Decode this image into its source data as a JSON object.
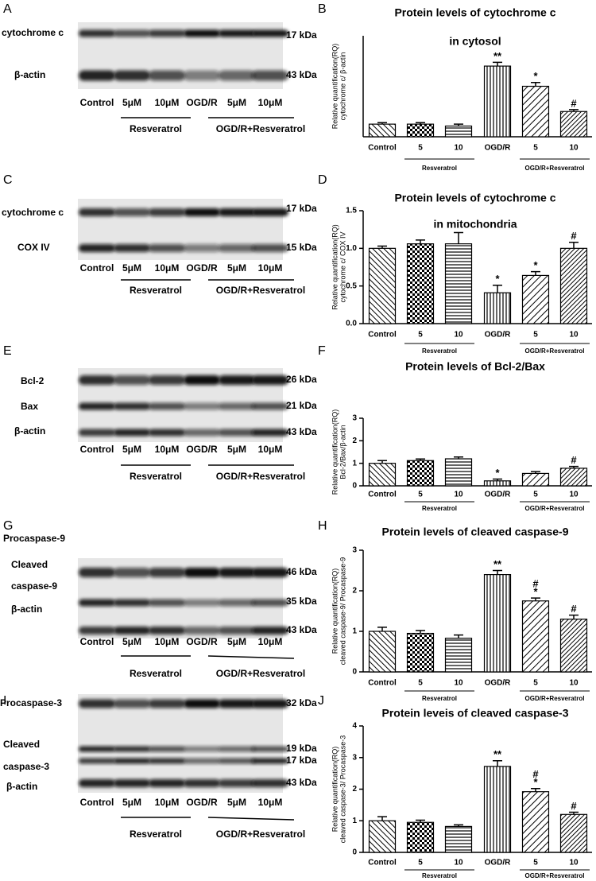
{
  "blots": [
    {
      "letter": "A",
      "proteins": [
        "cytochrome c",
        "β-actin"
      ],
      "kda": [
        "17 kDa",
        "43 kDa"
      ],
      "lanes": [
        "Control",
        "5μM",
        "10μM",
        "OGD/R",
        "5μM",
        "10μM"
      ],
      "groups": [
        "Resveratrol",
        "OGD/R+Resveratrol"
      ]
    },
    {
      "letter": "C",
      "proteins": [
        "cytochrome c",
        "COX IV"
      ],
      "kda": [
        "17 kDa",
        "15 kDa"
      ],
      "lanes": [
        "Control",
        "5μM",
        "10μM",
        "OGD/R",
        "5μM",
        "10μM"
      ],
      "groups": [
        "Resveratrol",
        "OGD/R+Resveratrol"
      ]
    },
    {
      "letter": "E",
      "proteins": [
        "Bcl-2",
        "Bax",
        "β-actin"
      ],
      "kda": [
        "26 kDa",
        "21 kDa",
        "43 kDa"
      ],
      "lanes": [
        "Control",
        "5μM",
        "10μM",
        "OGD/R",
        "5μM",
        "10μM"
      ],
      "groups": [
        "Resveratrol",
        "OGD/R+Resveratrol"
      ]
    },
    {
      "letter": "G",
      "proteins": [
        "Procaspase-9",
        "Cleaved",
        "caspase-9",
        "β-actin"
      ],
      "kda": [
        "46 kDa",
        "35 kDa",
        "43 kDa"
      ],
      "lanes": [
        "Control",
        "5μM",
        "10μM",
        "OGD/R",
        "5μM",
        "10μM"
      ],
      "groups": [
        "Resveratrol",
        "OGD/R+Resveratrol"
      ]
    },
    {
      "letter": "I",
      "proteins": [
        "Procaspase-3",
        "Cleaved",
        "caspase-3",
        "β-actin"
      ],
      "kda": [
        "32 kDa",
        "19 kDa",
        "17 kDa",
        "43 kDa"
      ],
      "lanes": [
        "Control",
        "5μM",
        "10μM",
        "OGD/R",
        "5μM",
        "10μM"
      ],
      "groups": [
        "Resveratrol",
        "OGD/R+Resveratrol"
      ]
    }
  ],
  "chart_data": [
    {
      "type": "bar",
      "letter": "B",
      "title": [
        "Protein levels of cytochrome c",
        "in cytosol"
      ],
      "ylabel": [
        "Relative quantification(RQ)",
        "cytochrome c/ β-actin"
      ],
      "categories": [
        "Control",
        "5",
        "10",
        "OGD/R",
        "5",
        "10"
      ],
      "groups": [
        "Resveratrol",
        "OGD/R+Resveratrol"
      ],
      "values": [
        1.0,
        1.0,
        0.85,
        5.6,
        4.0,
        2.0
      ],
      "errors": [
        0.12,
        0.12,
        0.15,
        0.3,
        0.3,
        0.15
      ],
      "annotations": [
        null,
        null,
        null,
        [
          "**"
        ],
        [
          "*"
        ],
        [
          "#"
        ]
      ],
      "ylim": [
        0,
        8
      ],
      "color": "#000000"
    },
    {
      "type": "bar",
      "letter": "D",
      "title": [
        "Protein levels of cytochrome c",
        "in mitochondria"
      ],
      "ylabel": [
        "Relative quantification(RQ)",
        "cytochrome c/ COX IV"
      ],
      "categories": [
        "Control",
        "5",
        "10",
        "OGD/R",
        "5",
        "10"
      ],
      "groups": [
        "Resveratrol",
        "OGD/R+Resveratrol"
      ],
      "values": [
        1.0,
        1.06,
        1.06,
        0.41,
        0.64,
        1.0
      ],
      "errors": [
        0.03,
        0.05,
        0.15,
        0.1,
        0.05,
        0.08
      ],
      "annotations": [
        null,
        null,
        null,
        [
          "*"
        ],
        [
          "*"
        ],
        [
          "#"
        ]
      ],
      "ylim": [
        0,
        1.5
      ],
      "yticks": [
        {
          "value": 0,
          "label": "0.0"
        },
        {
          "value": 0.5,
          "label": "0.5"
        },
        {
          "value": 1,
          "label": "1.0"
        },
        {
          "value": 1.5,
          "label": "1.5"
        }
      ],
      "color": "#000000"
    },
    {
      "type": "bar",
      "letter": "F",
      "title": [
        "Protein levels of Bcl-2/Bax"
      ],
      "ylabel": [
        "Relative quantification(RQ)",
        "Bcl-2/Bax/β-actin"
      ],
      "categories": [
        "Control",
        "5",
        "10",
        "OGD/R",
        "5",
        "10"
      ],
      "groups": [
        "Resveratrol",
        "OGD/R+Resveratrol"
      ],
      "values": [
        1.0,
        1.12,
        1.2,
        0.22,
        0.55,
        0.78
      ],
      "errors": [
        0.12,
        0.07,
        0.08,
        0.08,
        0.08,
        0.08
      ],
      "annotations": [
        null,
        null,
        null,
        [
          "*"
        ],
        null,
        [
          "#"
        ]
      ],
      "ylim": [
        0,
        3
      ],
      "yticks": [
        0,
        1,
        2,
        3
      ],
      "color": "#000000"
    },
    {
      "type": "bar",
      "letter": "H",
      "title": [
        "Protein levels of cleaved caspase-9"
      ],
      "ylabel": [
        "Relative quantification(RQ)",
        "cleaved caspase-9/ Procaspase-9"
      ],
      "categories": [
        "Control",
        "5",
        "10",
        "OGD/R",
        "5",
        "10"
      ],
      "groups": [
        "Resveratrol",
        "OGD/R+Resveratrol"
      ],
      "values": [
        1.0,
        0.95,
        0.83,
        2.4,
        1.75,
        1.3
      ],
      "errors": [
        0.1,
        0.07,
        0.08,
        0.1,
        0.07,
        0.1
      ],
      "annotations": [
        null,
        null,
        null,
        [
          "**"
        ],
        [
          "*",
          "#"
        ],
        [
          "#"
        ]
      ],
      "ylim": [
        0,
        3
      ],
      "yticks": [
        0,
        1,
        2,
        3
      ],
      "color": "#000000"
    },
    {
      "type": "bar",
      "letter": "J",
      "title": [
        "Protein leveis of cleaved caspase-3"
      ],
      "ylabel": [
        "Relative quantification(RQ)",
        "cleaved caspase-3/ Procaspase-3"
      ],
      "categories": [
        "Control",
        "5",
        "10",
        "OGD/R",
        "5",
        "10"
      ],
      "groups": [
        "Resveratrol",
        "OGD/R+Resveratrol"
      ],
      "values": [
        1.0,
        0.95,
        0.82,
        2.72,
        1.92,
        1.2
      ],
      "errors": [
        0.13,
        0.07,
        0.05,
        0.18,
        0.1,
        0.07
      ],
      "annotations": [
        null,
        null,
        null,
        [
          "**"
        ],
        [
          "*",
          "#"
        ],
        [
          "#"
        ]
      ],
      "ylim": [
        0,
        4
      ],
      "yticks": [
        0,
        1,
        2,
        3,
        4
      ],
      "color": "#000000"
    }
  ]
}
